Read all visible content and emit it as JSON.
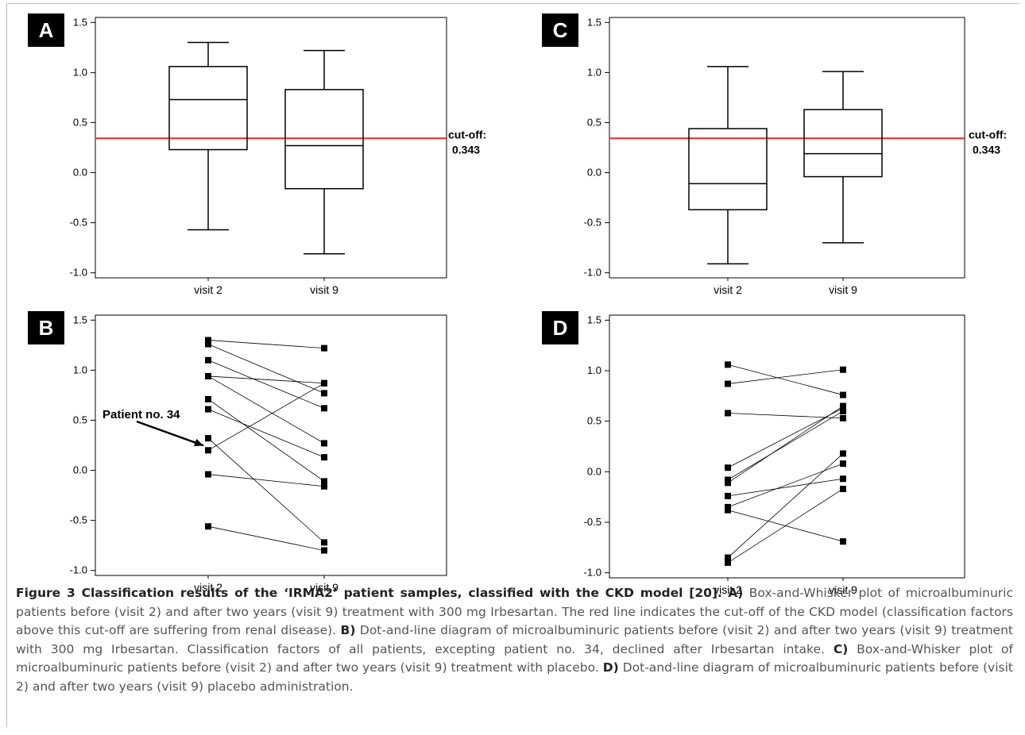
{
  "panels": [
    {
      "letter": "A",
      "kind": "box",
      "cutoff_label_1": "cut-off:",
      "cutoff_label_2": "0.343"
    },
    {
      "letter": "B",
      "kind": "dot",
      "annotation": "Patient no. 34"
    },
    {
      "letter": "C",
      "kind": "box",
      "cutoff_label_1": "cut-off:",
      "cutoff_label_2": "0.343"
    },
    {
      "letter": "D",
      "kind": "dot"
    }
  ],
  "colors": {
    "cutoff_line": "#e8282b",
    "axis": "#000000",
    "label_bg": "#000000",
    "label_text": "#ffffff"
  },
  "chart_data": [
    {
      "panel": "A",
      "type": "box",
      "categories": [
        "visit 2",
        "visit 9"
      ],
      "ylim": [
        -1.05,
        1.55
      ],
      "yticks": [
        "1.5",
        "1.0",
        "0.5",
        "0.0",
        "-0.5",
        "-1.0"
      ],
      "cutoff": 0.343,
      "boxes": [
        {
          "category": "visit 2",
          "whisker_low": -0.57,
          "q1": 0.23,
          "median": 0.73,
          "q3": 1.06,
          "whisker_high": 1.3
        },
        {
          "category": "visit 9",
          "whisker_low": -0.81,
          "q1": -0.16,
          "median": 0.27,
          "q3": 0.83,
          "whisker_high": 1.22
        }
      ]
    },
    {
      "panel": "B",
      "type": "scatter",
      "categories": [
        "visit 2",
        "visit 9"
      ],
      "ylim": [
        -1.05,
        1.55
      ],
      "yticks": [
        "1.5",
        "1.0",
        "0.5",
        "0.0",
        "-0.5",
        "-1.0"
      ],
      "pairs": [
        [
          1.3,
          1.22
        ],
        [
          1.26,
          0.77
        ],
        [
          1.1,
          0.62
        ],
        [
          0.94,
          0.87
        ],
        [
          0.94,
          0.27
        ],
        [
          0.71,
          -0.11
        ],
        [
          0.61,
          0.13
        ],
        [
          0.32,
          -0.72
        ],
        [
          0.2,
          0.87
        ],
        [
          -0.04,
          -0.16
        ],
        [
          -0.56,
          -0.8
        ]
      ],
      "highlight": {
        "label": "Patient no. 34",
        "visit2": 0.2,
        "visit9": 0.87
      }
    },
    {
      "panel": "C",
      "type": "box",
      "categories": [
        "visit 2",
        "visit 9"
      ],
      "ylim": [
        -1.05,
        1.55
      ],
      "yticks": [
        "1.5",
        "1.0",
        "0.5",
        "0.0",
        "-0.5",
        "-1.0"
      ],
      "cutoff": 0.343,
      "boxes": [
        {
          "category": "visit 2",
          "whisker_low": -0.91,
          "q1": -0.37,
          "median": -0.11,
          "q3": 0.44,
          "whisker_high": 1.06
        },
        {
          "category": "visit 9",
          "whisker_low": -0.7,
          "q1": -0.04,
          "median": 0.19,
          "q3": 0.63,
          "whisker_high": 1.01
        }
      ]
    },
    {
      "panel": "D",
      "type": "scatter",
      "categories": [
        "visit 2",
        "visit 9"
      ],
      "ylim": [
        -1.05,
        1.55
      ],
      "yticks": [
        "1.5",
        "1.0",
        "0.5",
        "0.0",
        "-0.5",
        "-1.0"
      ],
      "pairs": [
        [
          1.06,
          0.76
        ],
        [
          0.87,
          1.01
        ],
        [
          0.58,
          0.53
        ],
        [
          0.04,
          0.63
        ],
        [
          -0.08,
          0.6
        ],
        [
          -0.11,
          0.65
        ],
        [
          -0.24,
          -0.07
        ],
        [
          -0.35,
          0.08
        ],
        [
          -0.38,
          -0.69
        ],
        [
          -0.85,
          0.18
        ],
        [
          -0.9,
          -0.17
        ]
      ]
    }
  ],
  "caption": {
    "title": "Figure 3 Classification results of the ‘IRMA2’ patient samples, classified with the CKD model [20].",
    "a_label": "A)",
    "a_text": " Box-and-Whisker plot of microalbuminuric patients before (visit 2) and after two years (visit 9) treatment with 300 mg Irbesartan. The red line indicates the cut-off of the CKD model (classification factors above this cut-off are suffering from renal disease).",
    "b_label": "B)",
    "b_text": " Dot-and-line diagram of microalbuminuric patients before (visit 2) and after two years (visit 9) treatment with 300 mg Irbesartan. Classification factors of all patients, excepting patient no. 34, declined after Irbesartan intake.",
    "c_label": "C)",
    "c_text": " Box-and-Whisker plot of microalbuminuric patients before (visit 2) and after two years (visit 9) treatment with placebo.",
    "d_label": "D)",
    "d_text": " Dot-and-line diagram of microalbuminuric patients before (visit 2) and after two years (visit 9) placebo administration."
  }
}
